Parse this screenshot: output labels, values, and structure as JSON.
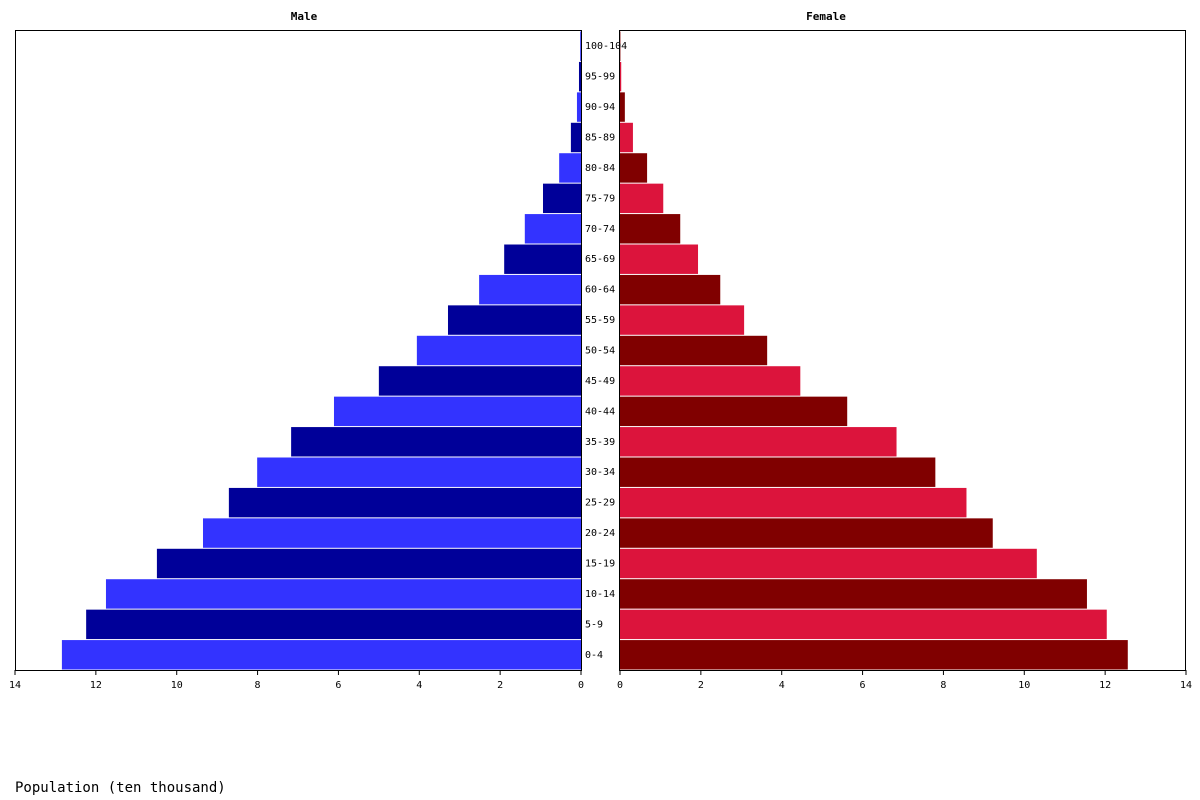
{
  "chart_data": {
    "type": "pyramid",
    "x_label": "Population (ten thousand)",
    "categories": [
      "0-4",
      "5-9",
      "10-14",
      "15-19",
      "20-24",
      "25-29",
      "30-34",
      "35-39",
      "40-44",
      "45-49",
      "50-54",
      "55-59",
      "60-64",
      "65-69",
      "70-74",
      "75-79",
      "80-84",
      "85-89",
      "90-94",
      "95-99",
      "100-104"
    ],
    "series": [
      {
        "name": "Male",
        "colors": [
          "#3333ff",
          "#000099"
        ],
        "values": [
          12.84,
          12.24,
          11.75,
          10.49,
          9.35,
          8.71,
          8.01,
          7.17,
          6.11,
          5.0,
          4.06,
          3.29,
          2.52,
          1.9,
          1.39,
          0.94,
          0.54,
          0.25,
          0.1,
          0.05,
          0.02
        ]
      },
      {
        "name": "Female",
        "colors": [
          "#800000",
          "#dc143c"
        ],
        "values": [
          12.56,
          12.04,
          11.55,
          10.31,
          9.22,
          8.57,
          7.8,
          6.84,
          5.62,
          4.46,
          3.64,
          3.07,
          2.48,
          1.93,
          1.49,
          1.07,
          0.67,
          0.32,
          0.12,
          0.03,
          0.01
        ]
      }
    ],
    "xlim": [
      0,
      14
    ],
    "xticks": [
      0,
      2,
      4,
      6,
      8,
      10,
      12,
      14
    ]
  }
}
